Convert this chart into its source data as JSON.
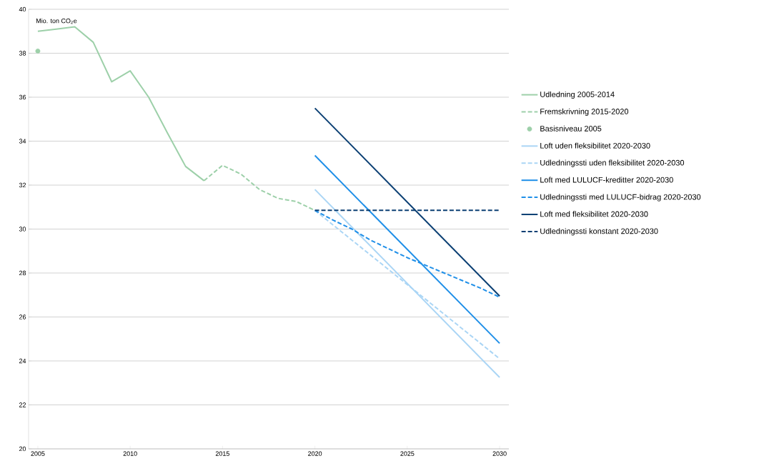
{
  "chart_data": {
    "type": "line",
    "ylabel": "Mio. ton CO$_{2}$e",
    "xlim": [
      2004.5,
      2030.5
    ],
    "xticks": [
      2005,
      2010,
      2015,
      2020,
      2025,
      2030
    ],
    "ylim": [
      20,
      40
    ],
    "yticks": [
      20,
      22,
      24,
      26,
      28,
      30,
      32,
      34,
      36,
      38,
      40
    ],
    "grid": "y",
    "legend": "right",
    "series": [
      {
        "name": "Udledning 2005-2014",
        "color": "#9dd0a9",
        "line_style": "solid",
        "marker": "none",
        "x": [
          2005,
          2006,
          2007,
          2008,
          2009,
          2010,
          2011,
          2012,
          2013,
          2014
        ],
        "values": [
          39.0,
          39.1,
          39.2,
          38.5,
          36.7,
          37.2,
          36.0,
          34.4,
          32.85,
          32.2
        ]
      },
      {
        "name": "Fremskrivning 2015-2020",
        "color": "#9dd0a9",
        "line_style": "dashed",
        "marker": "none",
        "x": [
          2014,
          2015,
          2016,
          2017,
          2018,
          2019,
          2020
        ],
        "values": [
          32.2,
          32.9,
          32.5,
          31.8,
          31.4,
          31.25,
          30.85
        ]
      },
      {
        "name": "Basisniveau 2005",
        "color": "#9dd0a9",
        "type": "scatter",
        "marker": "circle",
        "x": [
          2005
        ],
        "values": [
          38.1
        ]
      },
      {
        "name": "Loft uden fleksibilitet 2020-2030",
        "color": "#aad5f5",
        "line_style": "solid",
        "marker": "none",
        "x": [
          2020,
          2030
        ],
        "values": [
          31.8,
          23.25
        ]
      },
      {
        "name": "Udledningssti uden fleksibilitet 2020-2030",
        "color": "#aad5f5",
        "line_style": "dashed",
        "marker": "none",
        "x": [
          2020,
          2030
        ],
        "values": [
          30.85,
          24.1
        ]
      },
      {
        "name": "Loft med LULUCF-kreditter 2020-2030",
        "color": "#1f8fe8",
        "line_style": "solid",
        "marker": "none",
        "x": [
          2020,
          2030
        ],
        "values": [
          33.35,
          24.8
        ]
      },
      {
        "name": "Udledningssti med LULUCF-bidrag 2020-2030",
        "color": "#1f8fe8",
        "line_style": "dashed",
        "marker": "none",
        "x": [
          2020,
          2021,
          2022,
          2023,
          2024,
          2025,
          2026,
          2027,
          2028,
          2029,
          2030
        ],
        "values": [
          30.85,
          30.4,
          30.0,
          29.5,
          29.1,
          28.7,
          28.35,
          28.0,
          27.65,
          27.3,
          26.9
        ]
      },
      {
        "name": "Loft med fleksibilitet 2020-2030",
        "color": "#0b3f73",
        "line_style": "solid",
        "marker": "none",
        "x": [
          2020,
          2030
        ],
        "values": [
          35.5,
          26.95
        ]
      },
      {
        "name": "Udledningssti konstant 2020-2030",
        "color": "#0b3f73",
        "line_style": "dashed",
        "marker": "none",
        "x": [
          2020,
          2030
        ],
        "values": [
          30.85,
          30.85
        ]
      }
    ]
  }
}
